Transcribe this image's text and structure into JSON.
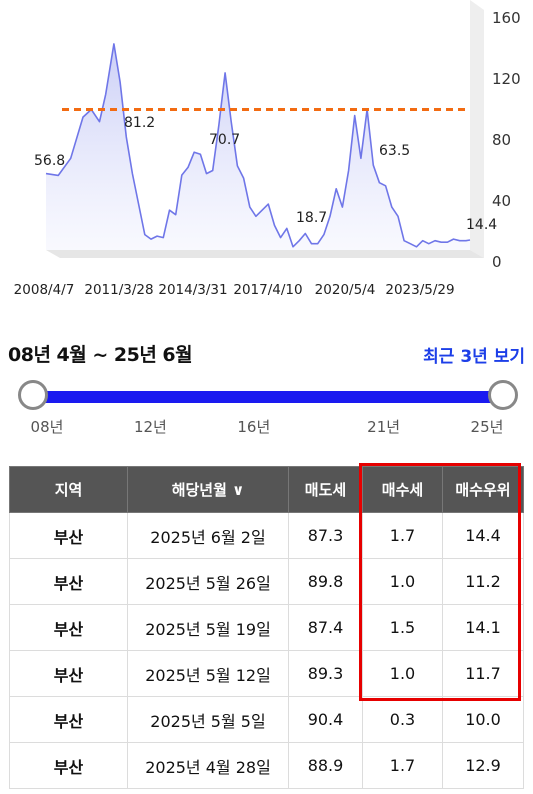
{
  "chart_data": {
    "type": "area",
    "x_tick_labels": [
      "2008/4/7",
      "2011/3/28",
      "2014/3/31",
      "2017/4/10",
      "2020/5/4",
      "2023/5/29"
    ],
    "y_ticks": [
      0,
      40,
      80,
      120,
      160
    ],
    "ylim": [
      0,
      160
    ],
    "reference_line": 100,
    "annotations": [
      "56.8",
      "81.2",
      "70.7",
      "18.7",
      "63.5",
      "14.4"
    ],
    "series": [
      {
        "x": [
          "2008/4",
          "2008/10",
          "2009/4",
          "2009/10",
          "2010/2",
          "2010/6",
          "2010/9",
          "2011/1",
          "2011/4",
          "2011/7",
          "2011/10",
          "2012/1",
          "2012/4",
          "2012/7",
          "2012/10",
          "2013/1",
          "2013/4",
          "2013/7",
          "2013/10",
          "2014/1",
          "2014/4",
          "2014/7",
          "2014/10",
          "2015/1",
          "2015/4",
          "2015/7",
          "2015/10",
          "2016/1",
          "2016/4",
          "2016/7",
          "2016/10",
          "2017/1",
          "2017/4",
          "2017/7",
          "2017/10",
          "2018/1",
          "2018/4",
          "2018/7",
          "2018/10",
          "2019/1",
          "2019/4",
          "2019/7",
          "2019/10",
          "2020/1",
          "2020/4",
          "2020/7",
          "2020/10",
          "2021/1",
          "2021/4",
          "2021/7",
          "2021/10",
          "2022/1",
          "2022/4",
          "2022/7",
          "2022/10",
          "2023/1",
          "2023/4",
          "2023/7",
          "2023/10",
          "2024/1",
          "2024/4",
          "2024/7",
          "2024/10",
          "2025/1",
          "2025/4",
          "2025/6"
        ],
        "values": [
          58,
          56.8,
          68,
          95,
          100,
          92,
          110,
          143,
          118,
          82,
          58,
          38,
          18,
          15,
          17,
          16,
          34,
          31,
          57,
          62,
          72,
          70.7,
          58,
          60,
          90,
          124,
          92,
          63,
          55,
          36,
          30,
          34,
          38,
          24,
          16,
          22,
          10,
          14,
          18.7,
          12,
          12,
          18,
          30,
          48,
          36,
          60,
          96,
          68,
          100,
          63.5,
          52,
          50,
          36,
          30,
          14,
          12,
          10,
          14,
          12,
          14,
          13,
          13,
          15,
          14,
          14,
          14.4
        ]
      }
    ]
  },
  "range": {
    "label": "08년 4월 ~ 25년 6월",
    "recent_link": "최근 3년 보기",
    "ticks": [
      {
        "label": "08년",
        "pos": 0
      },
      {
        "label": "12년",
        "pos": 0.235
      },
      {
        "label": "16년",
        "pos": 0.47
      },
      {
        "label": "21년",
        "pos": 0.765
      },
      {
        "label": "25년",
        "pos": 1
      }
    ]
  },
  "table": {
    "headers": [
      "지역",
      "해당년월 ∨",
      "매도세",
      "매수세",
      "매수우위"
    ],
    "rows": [
      [
        "부산",
        "2025년 6월 2일",
        "87.3",
        "1.7",
        "14.4"
      ],
      [
        "부산",
        "2025년 5월 26일",
        "89.8",
        "1.0",
        "11.2"
      ],
      [
        "부산",
        "2025년 5월 19일",
        "87.4",
        "1.5",
        "14.1"
      ],
      [
        "부산",
        "2025년 5월 12일",
        "89.3",
        "1.0",
        "11.7"
      ],
      [
        "부산",
        "2025년 5월 5일",
        "90.4",
        "0.3",
        "10.0"
      ],
      [
        "부산",
        "2025년 4월 28일",
        "88.9",
        "1.7",
        "12.9"
      ]
    ]
  },
  "colors": {
    "line": "#6f76e8",
    "area_top": "#c9cdf6",
    "reference": "#f26b12",
    "slider_track": "#1a1af0",
    "highlight": "#e60000",
    "header_bg": "#555555",
    "link": "#1d3fe8"
  }
}
